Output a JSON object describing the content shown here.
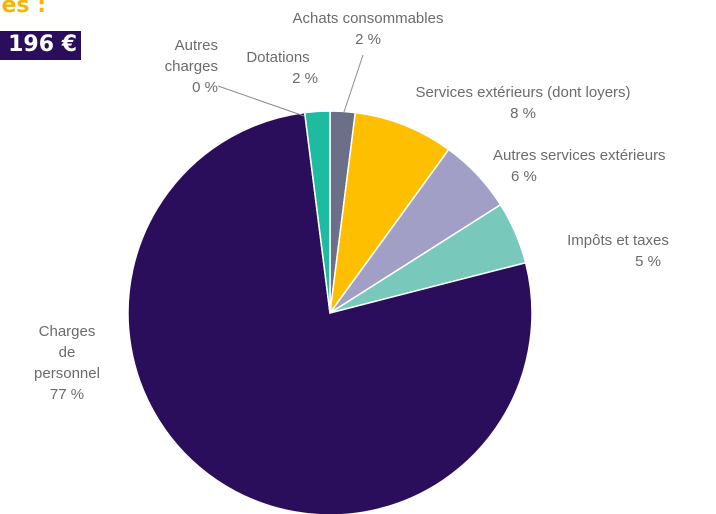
{
  "header": {
    "line1": "es :",
    "line2": "196 €"
  },
  "chart_data": {
    "type": "pie",
    "title": "",
    "slices": [
      {
        "label": "Achats consommables",
        "value_label": "2 %",
        "value": 2,
        "color": "#6c6f88"
      },
      {
        "label": "Services extérieurs (dont loyers)",
        "value_label": "8 %",
        "value": 8,
        "color": "#fdbf00"
      },
      {
        "label": "Autres services extérieurs",
        "value_label": "6 %",
        "value": 6,
        "color": "#a19fc6"
      },
      {
        "label": "Impôts et taxes",
        "value_label": "5 %",
        "value": 5,
        "color": "#78c9bc"
      },
      {
        "label": "Charges de personnel",
        "label_lines": [
          "Charges",
          "de",
          "personnel"
        ],
        "value_label": "77 %",
        "value": 77,
        "color": "#2a0e5c"
      },
      {
        "label": "Autres charges",
        "label_lines": [
          "Autres",
          "charges"
        ],
        "value_label": "0 %",
        "value": 0,
        "color": "#ffffff"
      },
      {
        "label": "Dotations",
        "value_label": "2 %",
        "value": 2,
        "color": "#1fbba1"
      }
    ]
  }
}
